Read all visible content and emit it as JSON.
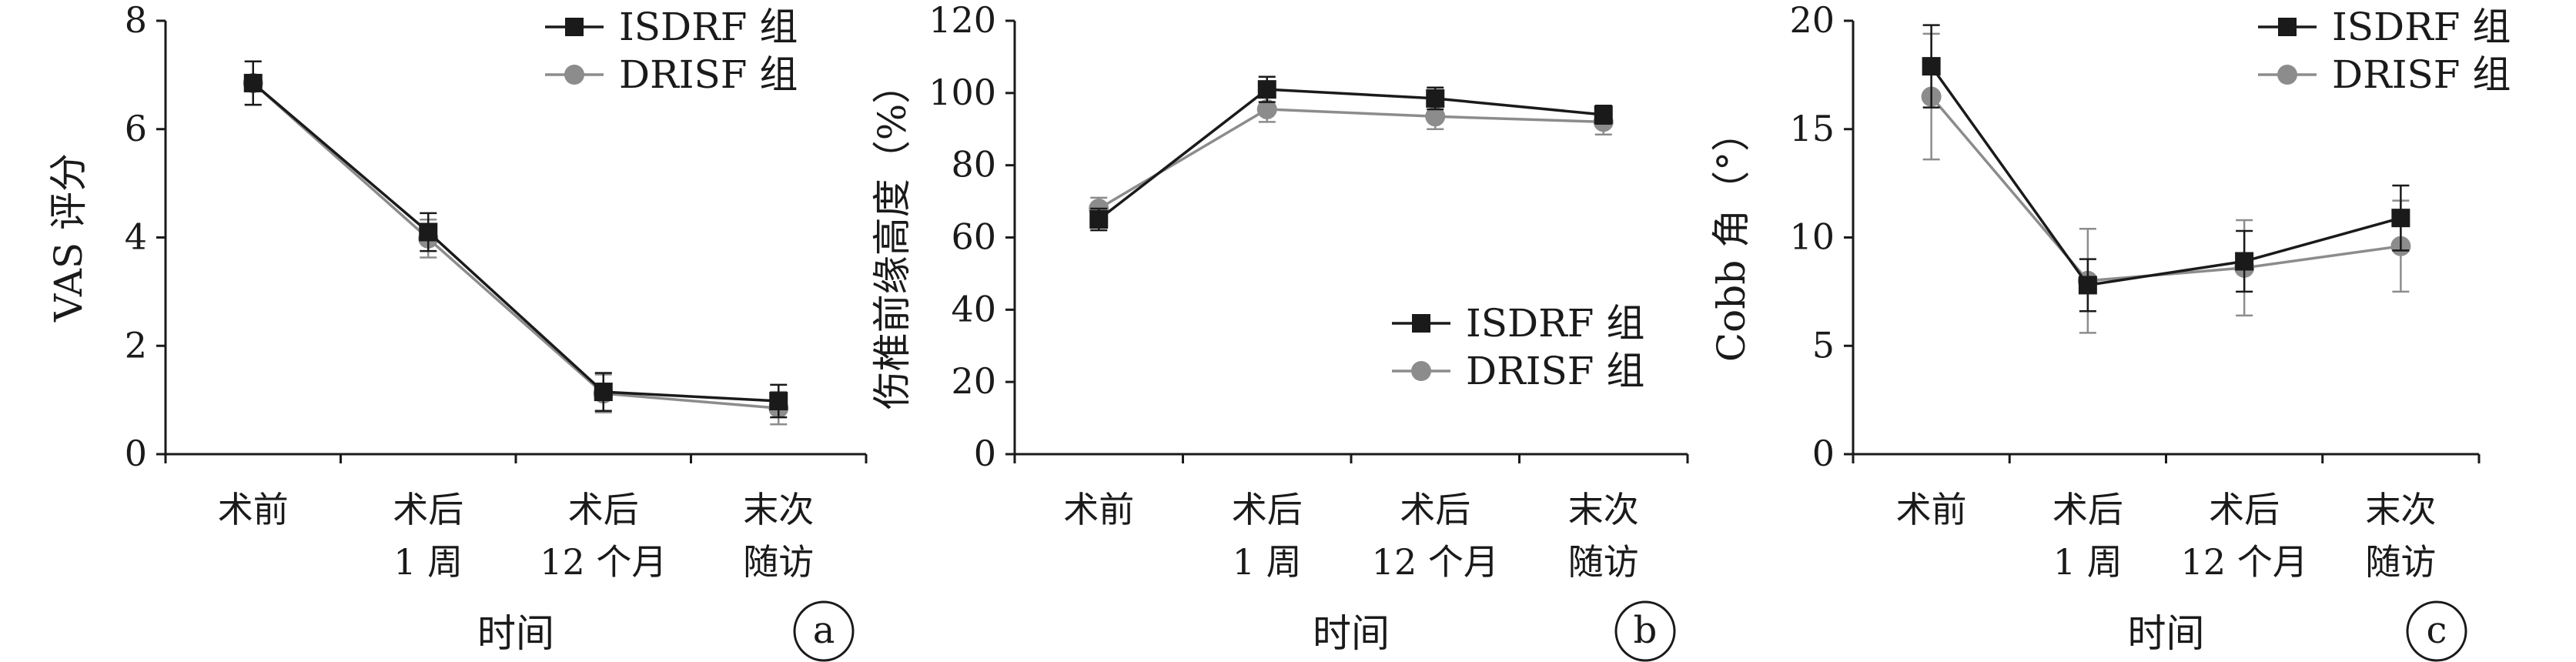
{
  "chart_data": [
    {
      "type": "line",
      "panel_label": "a",
      "ylabel": "VAS 评分",
      "xlabel": "时间",
      "categories": [
        [
          "术前"
        ],
        [
          "术后",
          "1 周"
        ],
        [
          "术后",
          "12 个月"
        ],
        [
          "末次",
          "随访"
        ]
      ],
      "ylim": [
        0,
        8
      ],
      "yticks": [
        "0",
        "2",
        "4",
        "6",
        "8"
      ],
      "legend_position": "top-right",
      "series": [
        {
          "name": "ISDRF 组",
          "marker": "square",
          "color": "#1a1a1a",
          "values": [
            6.85,
            4.1,
            1.15,
            0.98
          ],
          "error": [
            0.4,
            0.35,
            0.35,
            0.3
          ]
        },
        {
          "name": "DRISF 组",
          "marker": "circle",
          "color": "#8c8c8c",
          "values": [
            6.85,
            3.98,
            1.12,
            0.85
          ],
          "error": [
            0.4,
            0.35,
            0.35,
            0.3
          ]
        }
      ]
    },
    {
      "type": "line",
      "panel_label": "b",
      "ylabel": "伤椎前缘高度（%）",
      "xlabel": "时间",
      "categories": [
        [
          "术前"
        ],
        [
          "术后",
          "1 周"
        ],
        [
          "术后",
          "12 个月"
        ],
        [
          "末次",
          "随访"
        ]
      ],
      "ylim": [
        0,
        120
      ],
      "yticks": [
        "0",
        "20",
        "40",
        "60",
        "80",
        "100",
        "120"
      ],
      "legend_position": "center-right",
      "series": [
        {
          "name": "ISDRF 组",
          "marker": "square",
          "color": "#1a1a1a",
          "values": [
            65,
            101,
            98.5,
            94
          ],
          "error": [
            3,
            3.5,
            3,
            2.5
          ]
        },
        {
          "name": "DRISF 组",
          "marker": "circle",
          "color": "#8c8c8c",
          "values": [
            68,
            95.5,
            93.5,
            92
          ],
          "error": [
            3,
            3.5,
            3.5,
            3.5
          ]
        }
      ]
    },
    {
      "type": "line",
      "panel_label": "c",
      "ylabel": "Cobb 角（°）",
      "xlabel": "时间",
      "categories": [
        [
          "术前"
        ],
        [
          "术后",
          "1 周"
        ],
        [
          "术后",
          "12 个月"
        ],
        [
          "末次",
          "随访"
        ]
      ],
      "ylim": [
        0,
        20
      ],
      "yticks": [
        "0",
        "5",
        "10",
        "15",
        "20"
      ],
      "legend_position": "top-right",
      "series": [
        {
          "name": "ISDRF 组",
          "marker": "square",
          "color": "#1a1a1a",
          "values": [
            17.9,
            7.8,
            8.9,
            10.9
          ],
          "error": [
            1.9,
            1.2,
            1.4,
            1.5
          ]
        },
        {
          "name": "DRISF 组",
          "marker": "circle",
          "color": "#8c8c8c",
          "values": [
            16.5,
            8.0,
            8.6,
            9.6
          ],
          "error": [
            2.9,
            2.4,
            2.2,
            2.1
          ]
        }
      ]
    }
  ]
}
